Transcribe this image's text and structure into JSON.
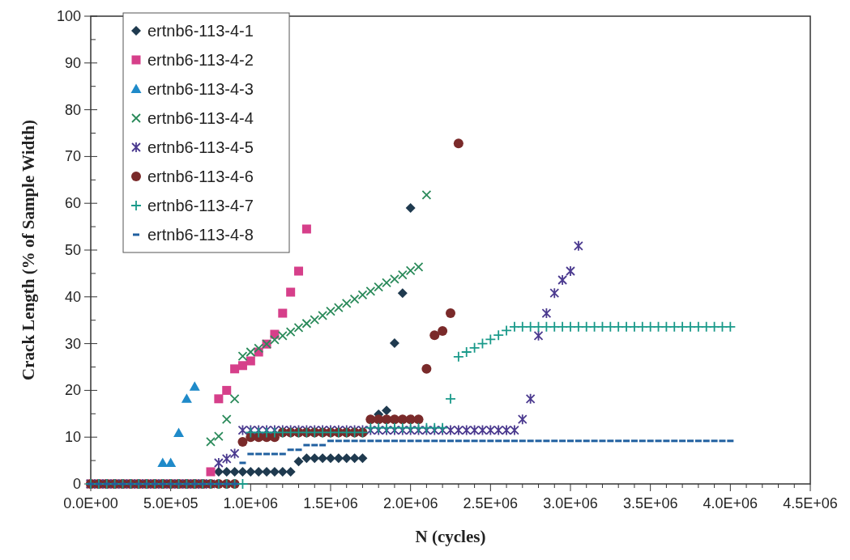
{
  "chart_data": {
    "type": "scatter",
    "xlabel": "N (cycles)",
    "ylabel": "Crack Length (% of Sample Width)",
    "xlim": [
      0,
      4500000
    ],
    "ylim": [
      0,
      100
    ],
    "xticks": [
      {
        "value": 0,
        "label": "0.0E+00"
      },
      {
        "value": 100000,
        "label": null
      },
      {
        "value": 200000,
        "label": null
      },
      {
        "value": 300000,
        "label": null
      },
      {
        "value": 400000,
        "label": null
      },
      {
        "value": 500000,
        "label": "5.0E+05"
      },
      {
        "value": 600000,
        "label": null
      },
      {
        "value": 700000,
        "label": null
      },
      {
        "value": 800000,
        "label": null
      },
      {
        "value": 900000,
        "label": null
      },
      {
        "value": 1000000,
        "label": "1.0E+06"
      },
      {
        "value": 1100000,
        "label": null
      },
      {
        "value": 1200000,
        "label": null
      },
      {
        "value": 1300000,
        "label": null
      },
      {
        "value": 1400000,
        "label": null
      },
      {
        "value": 1500000,
        "label": "1.5E+06"
      },
      {
        "value": 1600000,
        "label": null
      },
      {
        "value": 1700000,
        "label": null
      },
      {
        "value": 1800000,
        "label": null
      },
      {
        "value": 1900000,
        "label": null
      },
      {
        "value": 2000000,
        "label": "2.0E+06"
      },
      {
        "value": 2100000,
        "label": null
      },
      {
        "value": 2200000,
        "label": null
      },
      {
        "value": 2300000,
        "label": null
      },
      {
        "value": 2400000,
        "label": null
      },
      {
        "value": 2500000,
        "label": "2.5E+06"
      },
      {
        "value": 2600000,
        "label": null
      },
      {
        "value": 2700000,
        "label": null
      },
      {
        "value": 2800000,
        "label": null
      },
      {
        "value": 2900000,
        "label": null
      },
      {
        "value": 3000000,
        "label": "3.0E+06"
      },
      {
        "value": 3100000,
        "label": null
      },
      {
        "value": 3200000,
        "label": null
      },
      {
        "value": 3300000,
        "label": null
      },
      {
        "value": 3400000,
        "label": null
      },
      {
        "value": 3500000,
        "label": "3.5E+06"
      },
      {
        "value": 3600000,
        "label": null
      },
      {
        "value": 3700000,
        "label": null
      },
      {
        "value": 3800000,
        "label": null
      },
      {
        "value": 3900000,
        "label": null
      },
      {
        "value": 4000000,
        "label": "4.0E+06"
      },
      {
        "value": 4100000,
        "label": null
      },
      {
        "value": 4200000,
        "label": null
      },
      {
        "value": 4300000,
        "label": null
      },
      {
        "value": 4400000,
        "label": null
      },
      {
        "value": 4500000,
        "label": "4.5E+06"
      }
    ],
    "yticks": [
      0,
      {
        "value": 5,
        "label": null
      },
      10,
      {
        "value": 15,
        "label": null
      },
      20,
      {
        "value": 25,
        "label": null
      },
      30,
      {
        "value": 35,
        "label": null
      },
      40,
      {
        "value": 45,
        "label": null
      },
      50,
      {
        "value": 55,
        "label": null
      },
      60,
      {
        "value": 65,
        "label": null
      },
      70,
      {
        "value": 75,
        "label": null
      },
      80,
      {
        "value": 85,
        "label": null
      },
      90,
      {
        "value": 95,
        "label": null
      },
      100
    ],
    "grid": false,
    "legend": "top left",
    "series": [
      {
        "name": "ertnb6-113-4-1",
        "color": "#1f3a4f",
        "marker": "diamond",
        "x": [
          800000,
          850000,
          900000,
          950000,
          1000000,
          1050000,
          1100000,
          1150000,
          1200000,
          1250000,
          1300000,
          1350000,
          1400000,
          1450000,
          1500000,
          1550000,
          1600000,
          1650000,
          1700000,
          1800000,
          1850000,
          1900000,
          1950000,
          2000000
        ],
        "values": [
          2.6,
          2.6,
          2.6,
          2.6,
          2.6,
          2.6,
          2.6,
          2.6,
          2.6,
          2.6,
          4.8,
          5.5,
          5.5,
          5.5,
          5.5,
          5.5,
          5.5,
          5.5,
          5.5,
          14.9,
          15.7,
          30.1,
          40.8,
          59
        ]
      },
      {
        "name": "ertnb6-113-4-2",
        "color": "#d63f8a",
        "marker": "square",
        "x": [
          0,
          50000,
          100000,
          150000,
          200000,
          250000,
          300000,
          350000,
          400000,
          450000,
          500000,
          550000,
          600000,
          650000,
          700000,
          750000,
          800000,
          850000,
          900000,
          950000,
          1000000,
          1050000,
          1100000,
          1150000,
          1200000,
          1250000,
          1300000,
          1350000
        ],
        "values": [
          0,
          0,
          0,
          0,
          0,
          0,
          0,
          0,
          0,
          0,
          0,
          0,
          0,
          0,
          0,
          2.6,
          18.2,
          20,
          24.6,
          25.3,
          26.3,
          28.2,
          29.9,
          32,
          36.5,
          41,
          45.5,
          54.5
        ]
      },
      {
        "name": "ertnb6-113-4-3",
        "color": "#1f8ac9",
        "marker": "triangle",
        "x": [
          450000,
          500000,
          550000,
          600000,
          650000
        ],
        "values": [
          4.5,
          4.5,
          10.9,
          18.2,
          20.8
        ]
      },
      {
        "name": "ertnb6-113-4-4",
        "color": "#2a8a5a",
        "marker": "cross",
        "x": [
          0,
          50000,
          100000,
          150000,
          200000,
          250000,
          300000,
          350000,
          400000,
          450000,
          500000,
          550000,
          600000,
          650000,
          700000,
          750000,
          800000,
          850000,
          900000,
          950000,
          1000000,
          1050000,
          1100000,
          1150000,
          1200000,
          1250000,
          1300000,
          1350000,
          1400000,
          1450000,
          1500000,
          1550000,
          1600000,
          1650000,
          1700000,
          1750000,
          1800000,
          1850000,
          1900000,
          1950000,
          2000000,
          2050000,
          2100000
        ],
        "values": [
          0,
          0,
          0,
          0,
          0,
          0,
          0,
          0,
          0,
          0,
          0,
          0,
          0,
          0,
          0,
          9,
          10.2,
          13.8,
          18.2,
          27.3,
          28.2,
          29,
          29.9,
          30.8,
          31.7,
          32.5,
          33.4,
          34.3,
          35.1,
          36,
          36.9,
          37.7,
          38.6,
          39.5,
          40.4,
          41.2,
          42.1,
          43,
          43.8,
          44.7,
          45.6,
          46.4,
          61.8
        ]
      },
      {
        "name": "ertnb6-113-4-5",
        "color": "#4b3a8f",
        "x": [
          0,
          50000,
          100000,
          150000,
          200000,
          250000,
          300000,
          350000,
          400000,
          450000,
          500000,
          550000,
          600000,
          650000,
          700000,
          750000,
          800000,
          850000,
          900000,
          950000,
          1000000,
          1050000,
          1100000,
          1150000,
          1200000,
          1250000,
          1300000,
          1350000,
          1400000,
          1450000,
          1500000,
          1550000,
          1600000,
          1650000,
          1700000,
          1750000,
          1800000,
          1850000,
          1900000,
          1950000,
          2000000,
          2050000,
          2100000,
          2150000,
          2200000,
          2250000,
          2300000,
          2350000,
          2400000,
          2450000,
          2500000,
          2550000,
          2600000,
          2650000,
          2700000,
          2750000,
          2800000,
          2850000,
          2900000,
          2950000,
          3000000,
          3050000
        ],
        "values": [
          0,
          0,
          0,
          0,
          0,
          0,
          0,
          0,
          0,
          0,
          0,
          0,
          0,
          0,
          0,
          0,
          4.5,
          5.4,
          6.5,
          11.5,
          11.5,
          11.5,
          11.5,
          11.5,
          11.5,
          11.5,
          11.5,
          11.5,
          11.5,
          11.5,
          11.5,
          11.5,
          11.5,
          11.5,
          11.5,
          11.5,
          11.5,
          11.5,
          11.5,
          11.5,
          11.5,
          11.5,
          11.5,
          11.5,
          11.5,
          11.5,
          11.5,
          11.5,
          11.5,
          11.5,
          11.5,
          11.5,
          11.5,
          11.5,
          13.8,
          18.2,
          31.7,
          36.5,
          40.8,
          43.6,
          45.5,
          50.9
        ]
      },
      {
        "name": "ertnb6-113-4-6",
        "color": "#7a2a2a",
        "marker": "circle",
        "x": [
          0,
          50000,
          100000,
          150000,
          200000,
          250000,
          300000,
          350000,
          400000,
          450000,
          500000,
          550000,
          600000,
          650000,
          700000,
          750000,
          800000,
          850000,
          900000,
          950000,
          1000000,
          1050000,
          1100000,
          1150000,
          1200000,
          1250000,
          1300000,
          1350000,
          1400000,
          1450000,
          1500000,
          1550000,
          1600000,
          1650000,
          1700000,
          1750000,
          1800000,
          1850000,
          1900000,
          1950000,
          2000000,
          2050000,
          2100000,
          2150000,
          2200000,
          2250000,
          2300000
        ],
        "values": [
          0,
          0,
          0,
          0,
          0,
          0,
          0,
          0,
          0,
          0,
          0,
          0,
          0,
          0,
          0,
          0,
          0,
          0,
          0,
          9,
          10,
          10,
          10,
          10,
          11,
          11,
          11,
          11,
          11,
          11,
          11,
          11,
          11,
          11,
          11,
          13.8,
          13.8,
          13.8,
          13.8,
          13.8,
          13.8,
          13.8,
          24.6,
          31.8,
          32.7,
          36.5,
          72.8
        ]
      },
      {
        "name": "ertnb6-113-4-7",
        "color": "#1a9a8a",
        "marker": "plus",
        "x": [
          0,
          50000,
          100000,
          150000,
          200000,
          250000,
          300000,
          350000,
          400000,
          450000,
          500000,
          550000,
          600000,
          650000,
          700000,
          750000,
          800000,
          850000,
          900000,
          950000,
          1000000,
          1050000,
          1100000,
          1150000,
          1200000,
          1250000,
          1300000,
          1350000,
          1400000,
          1450000,
          1500000,
          1550000,
          1600000,
          1650000,
          1700000,
          1750000,
          1800000,
          1850000,
          1900000,
          1950000,
          2000000,
          2050000,
          2100000,
          2150000,
          2200000,
          2250000,
          2300000,
          2350000,
          2400000,
          2450000,
          2500000,
          2550000,
          2600000,
          2650000,
          2700000,
          2750000,
          2800000,
          2850000,
          2900000,
          2950000,
          3000000,
          3050000,
          3100000,
          3150000,
          3200000,
          3250000,
          3300000,
          3350000,
          3400000,
          3450000,
          3500000,
          3550000,
          3600000,
          3650000,
          3700000,
          3750000,
          3800000,
          3850000,
          3900000,
          3950000,
          4000000
        ],
        "values": [
          0,
          0,
          0,
          0,
          0,
          0,
          0,
          0,
          0,
          0,
          0,
          0,
          0,
          0,
          0,
          0,
          0,
          0,
          0,
          0,
          11,
          11,
          11,
          11,
          11,
          11,
          11,
          11,
          11,
          11,
          11,
          11,
          11,
          11,
          11,
          12,
          12,
          12,
          12,
          12,
          12,
          12,
          12,
          12,
          12,
          18.2,
          27.2,
          28.2,
          29.1,
          30,
          30.9,
          31.8,
          32.8,
          33.6,
          33.6,
          33.6,
          33.6,
          33.6,
          33.6,
          33.6,
          33.6,
          33.6,
          33.6,
          33.6,
          33.6,
          33.6,
          33.6,
          33.6,
          33.6,
          33.6,
          33.6,
          33.6,
          33.6,
          33.6,
          33.6,
          33.6,
          33.6,
          33.6,
          33.6,
          33.6,
          33.6
        ]
      },
      {
        "name": "ertnb6-113-4-8",
        "color": "#2060a0",
        "x": [
          0,
          50000,
          100000,
          150000,
          200000,
          250000,
          300000,
          350000,
          400000,
          450000,
          500000,
          550000,
          600000,
          650000,
          700000,
          750000,
          800000,
          850000,
          900000,
          950000,
          1000000,
          1050000,
          1100000,
          1150000,
          1200000,
          1250000,
          1300000,
          1350000,
          1400000,
          1450000,
          1500000,
          1550000,
          1600000,
          1650000,
          1700000,
          1750000,
          1800000,
          1850000,
          1900000,
          1950000,
          2000000,
          2050000,
          2100000,
          2150000,
          2200000,
          2250000,
          2300000,
          2350000,
          2400000,
          2450000,
          2500000,
          2550000,
          2600000,
          2650000,
          2700000,
          2750000,
          2800000,
          2850000,
          2900000,
          2950000,
          3000000,
          3050000,
          3100000,
          3150000,
          3200000,
          3250000,
          3300000,
          3350000,
          3400000,
          3450000,
          3500000,
          3550000,
          3600000,
          3650000,
          3700000,
          3750000,
          3800000,
          3850000,
          3900000,
          3950000,
          4000000
        ],
        "values": [
          0,
          0,
          0,
          0,
          0,
          0,
          0,
          0,
          0,
          0,
          0,
          0,
          0,
          0,
          0,
          0,
          0,
          0,
          0,
          4.5,
          6.4,
          6.4,
          6.4,
          6.4,
          6.4,
          7.3,
          7.3,
          8.3,
          8.3,
          8.3,
          9.2,
          9.2,
          9.2,
          9.2,
          9.2,
          9.2,
          9.2,
          9.2,
          9.2,
          9.2,
          9.2,
          9.2,
          9.2,
          9.2,
          9.2,
          9.2,
          9.2,
          9.2,
          9.2,
          9.2,
          9.2,
          9.2,
          9.2,
          9.2,
          9.2,
          9.2,
          9.2,
          9.2,
          9.2,
          9.2,
          9.2,
          9.2,
          9.2,
          9.2,
          9.2,
          9.2,
          9.2,
          9.2,
          9.2,
          9.2,
          9.2,
          9.2,
          9.2,
          9.2,
          9.2,
          9.2,
          9.2,
          9.2,
          9.2,
          9.2,
          9.2
        ]
      }
    ]
  }
}
